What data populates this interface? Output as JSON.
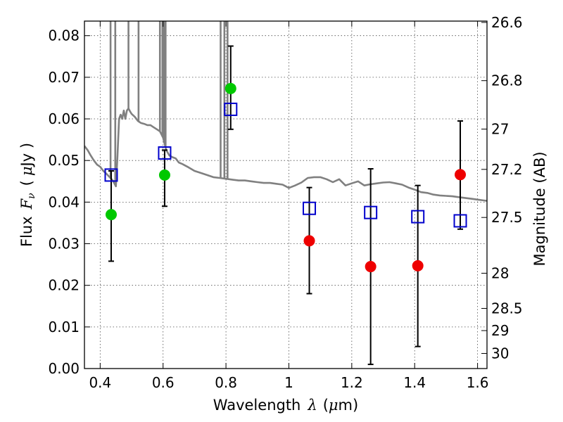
{
  "chart_data": {
    "type": "scatter",
    "title": "",
    "xlabel": {
      "prefix": "Wavelength",
      "symbol": "λ",
      "unit_open": "(",
      "unit": "μ",
      "unit_rest": "m)"
    },
    "ylabel": {
      "prefix": "Flux",
      "symbol": "F",
      "subscript": "ν",
      "unit_open": "(",
      "unit": "μ",
      "unit_rest": "Jy )"
    },
    "y2label": "Magnitude (AB)",
    "xlim": [
      0.35,
      1.63
    ],
    "ylim": [
      0.0,
      0.0835
    ],
    "grid": true,
    "x_ticks": [
      "0.4",
      "0.6",
      "0.8",
      "1",
      "1.2",
      "1.4",
      "1.6"
    ],
    "x_tick_values": [
      0.4,
      0.6,
      0.8,
      1.0,
      1.2,
      1.4,
      1.6
    ],
    "y_ticks": [
      "0.00",
      "0.01",
      "0.02",
      "0.03",
      "0.04",
      "0.05",
      "0.06",
      "0.07",
      "0.08"
    ],
    "y_tick_values": [
      0.0,
      0.01,
      0.02,
      0.03,
      0.04,
      0.05,
      0.06,
      0.07,
      0.08
    ],
    "y2_ticks": [
      "26.6",
      "26.8",
      "27",
      "27.2",
      "27.5",
      "28",
      "28.5",
      "29",
      "30"
    ],
    "y2_tick_values": [
      26.6,
      26.8,
      27.0,
      27.2,
      27.5,
      28.0,
      28.5,
      29.0,
      30.0
    ],
    "colors": {
      "model": "#808080",
      "detected": "#00c800",
      "measured": "#ee0000",
      "model_photometry": "#0000cc",
      "errorbar": "#000000"
    },
    "series": [
      {
        "kind": "line",
        "color": "#808080",
        "x": [
          0.35,
          0.36,
          0.37,
          0.38,
          0.39,
          0.4,
          0.41,
          0.42,
          0.43,
          0.44,
          0.445,
          0.45,
          0.455,
          0.46,
          0.465,
          0.47,
          0.475,
          0.48,
          0.485,
          0.49,
          0.495,
          0.5,
          0.51,
          0.52,
          0.53,
          0.54,
          0.55,
          0.56,
          0.57,
          0.58,
          0.59,
          0.6,
          0.61,
          0.62,
          0.63,
          0.64,
          0.65,
          0.66,
          0.67,
          0.68,
          0.7,
          0.72,
          0.74,
          0.76,
          0.78,
          0.8,
          0.82,
          0.84,
          0.86,
          0.88,
          0.9,
          0.92,
          0.94,
          0.96,
          0.98,
          1.0,
          1.02,
          1.04,
          1.06,
          1.08,
          1.1,
          1.12,
          1.14,
          1.16,
          1.18,
          1.2,
          1.22,
          1.24,
          1.26,
          1.28,
          1.3,
          1.32,
          1.34,
          1.36,
          1.38,
          1.4,
          1.42,
          1.44,
          1.46,
          1.48,
          1.5,
          1.52,
          1.54,
          1.56,
          1.58,
          1.6,
          1.62,
          1.63
        ],
        "y": [
          0.0535,
          0.0525,
          0.0512,
          0.05,
          0.049,
          0.0485,
          0.0475,
          0.0468,
          0.046,
          0.0452,
          0.0445,
          0.0438,
          0.051,
          0.06,
          0.061,
          0.06,
          0.062,
          0.06,
          0.062,
          0.0625,
          0.0618,
          0.0612,
          0.0605,
          0.0595,
          0.059,
          0.0588,
          0.0585,
          0.0585,
          0.058,
          0.0575,
          0.057,
          0.0555,
          0.0525,
          0.0512,
          0.0508,
          0.0505,
          0.0495,
          0.0492,
          0.0488,
          0.0484,
          0.0475,
          0.047,
          0.0465,
          0.046,
          0.0458,
          0.0456,
          0.0454,
          0.0452,
          0.0452,
          0.045,
          0.0448,
          0.0446,
          0.0446,
          0.0444,
          0.0442,
          0.0434,
          0.044,
          0.0447,
          0.0458,
          0.046,
          0.046,
          0.0455,
          0.0448,
          0.0455,
          0.044,
          0.0445,
          0.045,
          0.044,
          0.0443,
          0.0445,
          0.0447,
          0.0448,
          0.0445,
          0.0442,
          0.0435,
          0.043,
          0.0424,
          0.0422,
          0.0418,
          0.0416,
          0.0415,
          0.0414,
          0.0412,
          0.041,
          0.0408,
          0.0406,
          0.0404,
          0.0403
        ]
      },
      {
        "kind": "spikes",
        "color": "#808080",
        "x": [
          0.433,
          0.448,
          0.49,
          0.522,
          0.59,
          0.598,
          0.603,
          0.608,
          0.783,
          0.795,
          0.805
        ],
        "y_top": [
          0.0835,
          0.0835,
          0.0835,
          0.0835,
          0.0835,
          0.0835,
          0.0835,
          0.0835,
          0.0835,
          0.0835,
          0.0835
        ]
      },
      {
        "kind": "errorbar",
        "color": "#000000",
        "x": [
          0.435,
          0.605,
          0.815,
          1.065,
          1.26,
          1.41,
          1.545
        ],
        "low": [
          0.0258,
          0.039,
          0.0575,
          0.018,
          0.001,
          0.0053,
          0.0335
        ],
        "high": [
          0.0475,
          0.0525,
          0.0775,
          0.0435,
          0.048,
          0.044,
          0.0595
        ]
      },
      {
        "kind": "points",
        "marker": "circle",
        "color": "#00c800",
        "x": [
          0.435,
          0.605,
          0.815
        ],
        "y": [
          0.037,
          0.0465,
          0.0673
        ]
      },
      {
        "kind": "points",
        "marker": "circle",
        "color": "#ee0000",
        "x": [
          1.065,
          1.26,
          1.41,
          1.545
        ],
        "y": [
          0.0307,
          0.0245,
          0.0247,
          0.0466
        ]
      },
      {
        "kind": "points",
        "marker": "square",
        "color": "#0000cc",
        "x": [
          0.435,
          0.605,
          0.815,
          1.065,
          1.26,
          1.41,
          1.545
        ],
        "y": [
          0.0465,
          0.0518,
          0.0623,
          0.0385,
          0.0375,
          0.0365,
          0.0355
        ]
      }
    ]
  }
}
